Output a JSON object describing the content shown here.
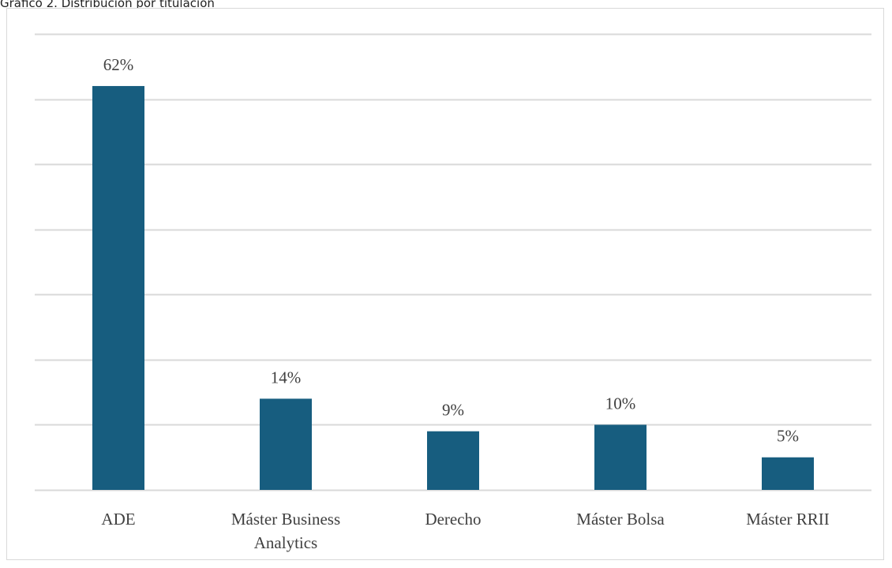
{
  "caption": "Gráfico 2. Distribución por titulación",
  "colors": {
    "bar": "#175d7f",
    "grid": "#d9d9d9",
    "text": "#404040",
    "frame": "#d9d9d9"
  },
  "chart_data": {
    "type": "bar",
    "categories": [
      "ADE",
      "Máster Business Analytics",
      "Derecho",
      "Máster Bolsa",
      "Máster RRII"
    ],
    "category_lines": [
      [
        "ADE"
      ],
      [
        "Máster Business",
        "Analytics"
      ],
      [
        "Derecho"
      ],
      [
        "Máster Bolsa"
      ],
      [
        "Máster RRII"
      ]
    ],
    "values": [
      62,
      14,
      9,
      10,
      5
    ],
    "data_labels": [
      "62%",
      "14%",
      "9%",
      "10%",
      "5%"
    ],
    "ylim": [
      0,
      70
    ],
    "ytick_step": 10,
    "show_ytick_labels": false,
    "grid": true,
    "legend": "none"
  }
}
